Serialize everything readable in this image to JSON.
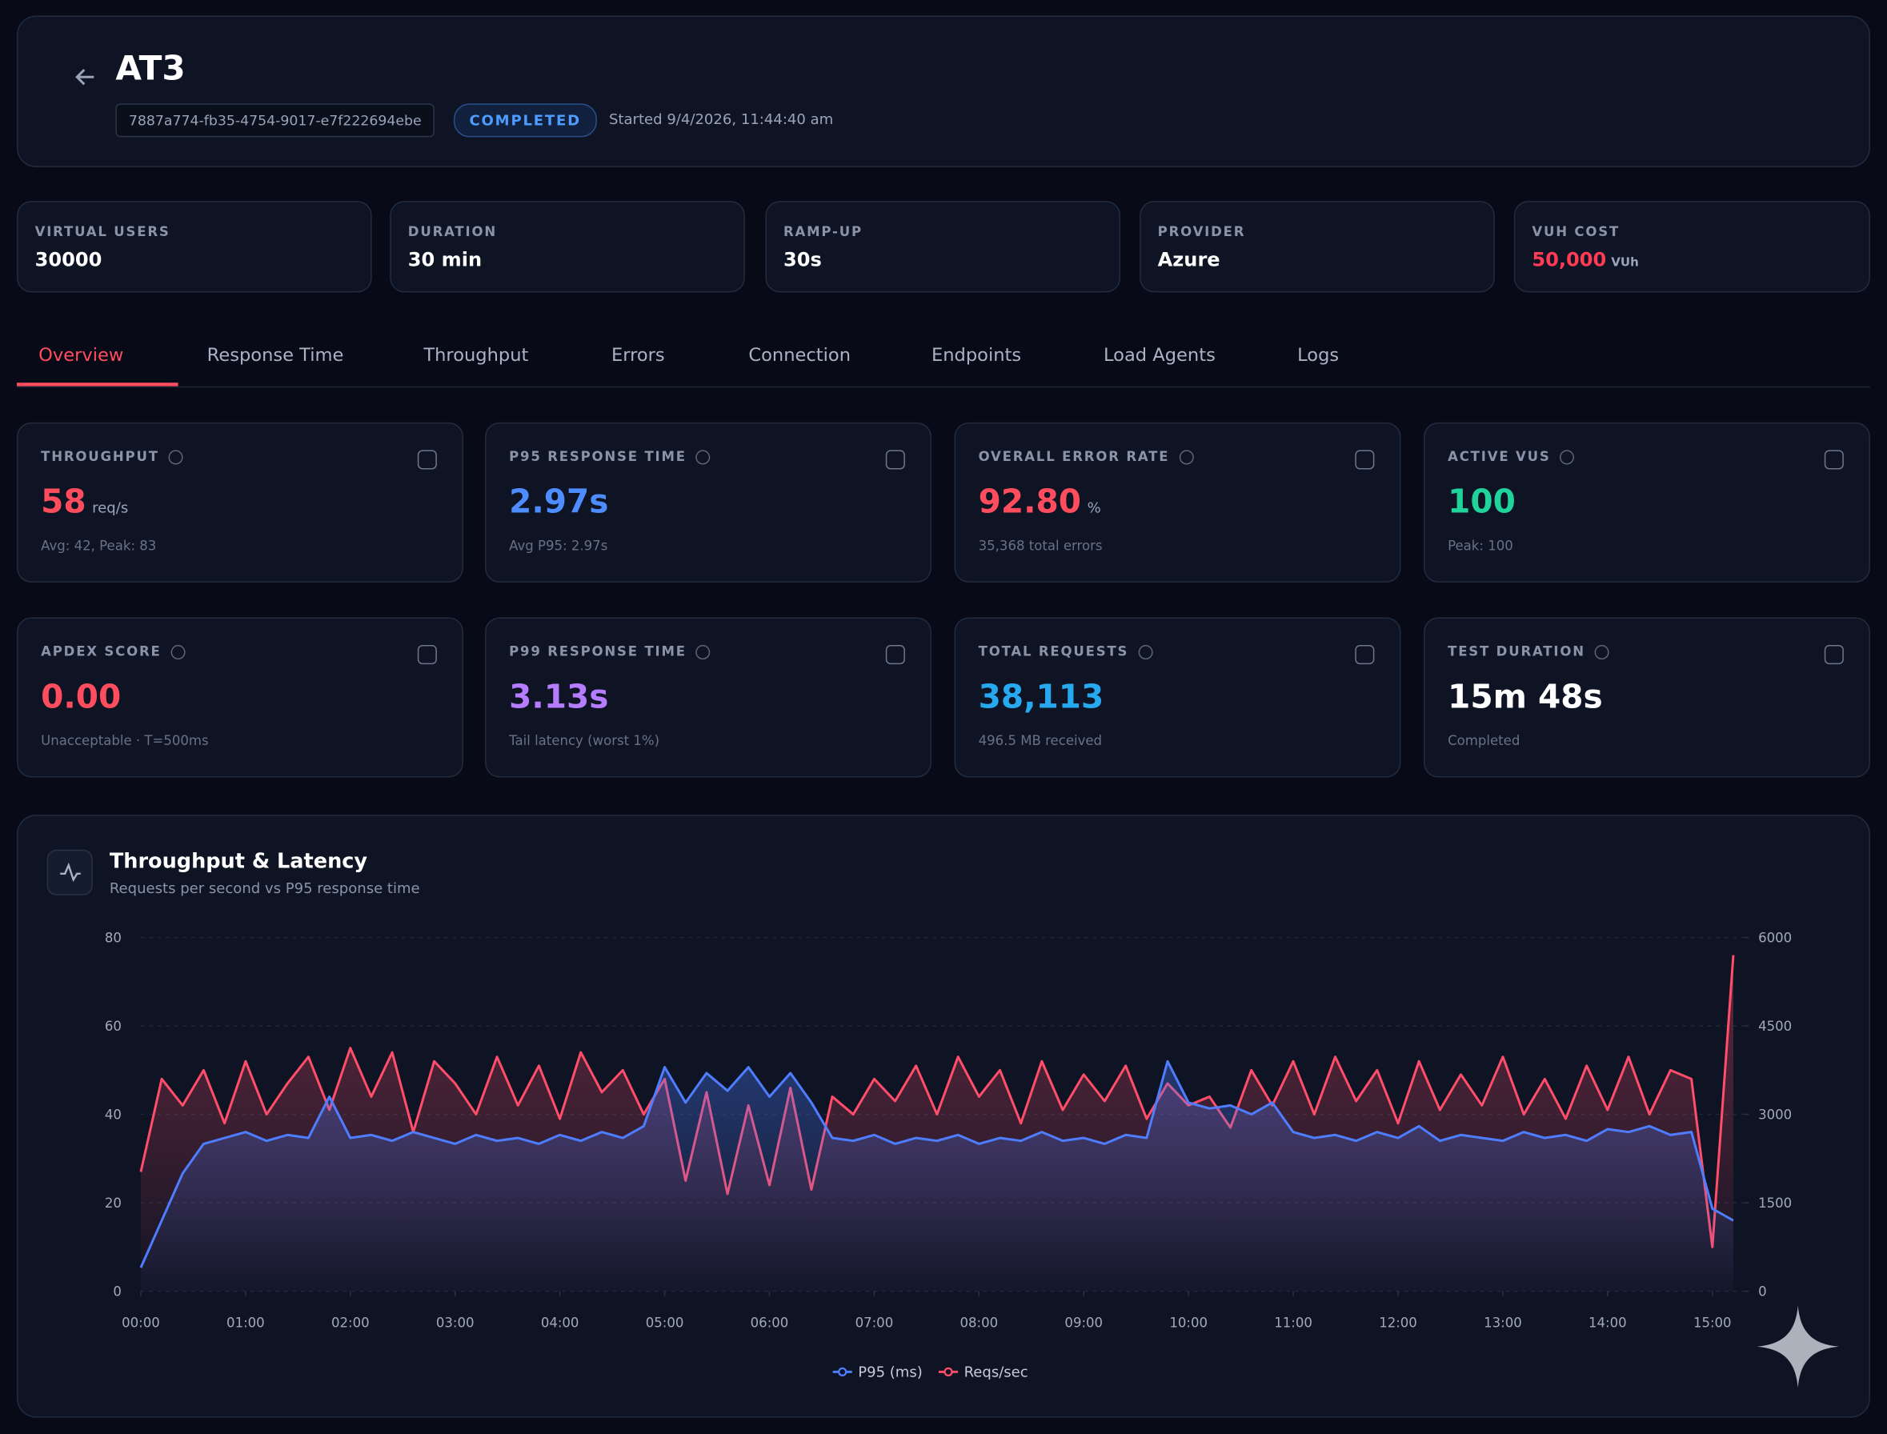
{
  "header": {
    "title": "AT3",
    "run_id": "7887a774-fb35-4754-9017-e7f222694ebe",
    "status": "COMPLETED",
    "started": "Started 9/4/2026, 11:44:40 am"
  },
  "config": [
    {
      "label": "VIRTUAL USERS",
      "value": "30000",
      "color": "#ffffff"
    },
    {
      "label": "DURATION",
      "value": "30 min",
      "color": "#ffffff"
    },
    {
      "label": "RAMP-UP",
      "value": "30s",
      "color": "#ffffff"
    },
    {
      "label": "PROVIDER",
      "value": "Azure",
      "color": "#ffffff"
    },
    {
      "label": "VUH COST",
      "value": "50,000",
      "unit": "VUh",
      "color": "#ff3b55"
    }
  ],
  "tabs": [
    "Overview",
    "Response Time",
    "Throughput",
    "Errors",
    "Connection",
    "Endpoints",
    "Load Agents",
    "Logs"
  ],
  "metrics": [
    {
      "label": "THROUGHPUT",
      "value": "58",
      "unit": "req/s",
      "sub": "Avg: 42, Peak: 83",
      "color": "#ff4d5e"
    },
    {
      "label": "P95 RESPONSE TIME",
      "value": "2.97s",
      "sub": "Avg P95: 2.97s",
      "color": "#4d8dff"
    },
    {
      "label": "OVERALL ERROR RATE",
      "value": "92.80",
      "unit": "%",
      "sub": "35,368 total errors",
      "color": "#ff4d5e"
    },
    {
      "label": "ACTIVE VUS",
      "value": "100",
      "sub": "Peak: 100",
      "color": "#20d39b"
    },
    {
      "label": "APDEX SCORE",
      "value": "0.00",
      "sub": "Unacceptable · T=500ms",
      "color": "#ff4d5e"
    },
    {
      "label": "P99 RESPONSE TIME",
      "value": "3.13s",
      "sub": "Tail latency (worst 1%)",
      "color": "#b57cff"
    },
    {
      "label": "TOTAL REQUESTS",
      "value": "38,113",
      "sub": "496.5 MB received",
      "color": "#27a9ef"
    },
    {
      "label": "TEST DURATION",
      "value": "15m 48s",
      "sub": "Completed",
      "color": "#ffffff"
    }
  ],
  "chart_data": {
    "type": "line",
    "title": "Throughput & Latency",
    "subtitle": "Requests per second vs P95 response time",
    "x": [
      0,
      0.2,
      0.4,
      0.6,
      0.8,
      1,
      1.2,
      1.4,
      1.6,
      1.8,
      2,
      2.2,
      2.4,
      2.6,
      2.8,
      3,
      3.2,
      3.4,
      3.6,
      3.8,
      4,
      4.2,
      4.4,
      4.6,
      4.8,
      5,
      5.2,
      5.4,
      5.6,
      5.8,
      6,
      6.2,
      6.4,
      6.6,
      6.8,
      7,
      7.2,
      7.4,
      7.6,
      7.8,
      8,
      8.2,
      8.4,
      8.6,
      8.8,
      9,
      9.2,
      9.4,
      9.6,
      9.8,
      10,
      10.2,
      10.4,
      10.6,
      10.8,
      11,
      11.2,
      11.4,
      11.6,
      11.8,
      12,
      12.2,
      12.4,
      12.6,
      12.8,
      13,
      13.2,
      13.4,
      13.6,
      13.8,
      14,
      14.2,
      14.4,
      14.6,
      14.8,
      15,
      15.2
    ],
    "series": [
      {
        "name": "P95 (ms)",
        "color": "#4f7dff",
        "axis": "y2",
        "values": [
          400,
          1200,
          2000,
          2500,
          2600,
          2700,
          2550,
          2650,
          2600,
          3300,
          2600,
          2650,
          2550,
          2700,
          2600,
          2500,
          2650,
          2550,
          2600,
          2500,
          2650,
          2550,
          2700,
          2600,
          2800,
          3800,
          3200,
          3700,
          3400,
          3800,
          3300,
          3700,
          3200,
          2600,
          2550,
          2650,
          2500,
          2600,
          2550,
          2650,
          2500,
          2600,
          2550,
          2700,
          2550,
          2600,
          2500,
          2650,
          2600,
          3900,
          3200,
          3100,
          3150,
          3000,
          3200,
          2700,
          2600,
          2650,
          2550,
          2700,
          2600,
          2800,
          2550,
          2650,
          2600,
          2550,
          2700,
          2600,
          2650,
          2550,
          2750,
          2700,
          2800,
          2650,
          2700,
          1400,
          1200
        ]
      },
      {
        "name": "Reqs/sec",
        "color": "#ff4d6a",
        "values": [
          27,
          48,
          42,
          50,
          38,
          52,
          40,
          47,
          53,
          41,
          55,
          44,
          54,
          36,
          52,
          47,
          40,
          53,
          42,
          51,
          39,
          54,
          45,
          50,
          40,
          48,
          25,
          45,
          22,
          42,
          24,
          46,
          23,
          44,
          40,
          48,
          43,
          51,
          40,
          53,
          44,
          50,
          38,
          52,
          41,
          49,
          43,
          51,
          39,
          47,
          42,
          44,
          37,
          50,
          42,
          52,
          40,
          53,
          43,
          50,
          38,
          52,
          41,
          49,
          42,
          53,
          40,
          48,
          39,
          51,
          41,
          53,
          40,
          50,
          48,
          10,
          76
        ]
      }
    ],
    "xlim": [
      0,
      15.3
    ],
    "xticks": [
      {
        "value": 0,
        "label": "00:00"
      },
      {
        "value": 1,
        "label": "01:00"
      },
      {
        "value": 2,
        "label": "02:00"
      },
      {
        "value": 3,
        "label": "03:00"
      },
      {
        "value": 4,
        "label": "04:00"
      },
      {
        "value": 5,
        "label": "05:00"
      },
      {
        "value": 6,
        "label": "06:00"
      },
      {
        "value": 7,
        "label": "07:00"
      },
      {
        "value": 8,
        "label": "08:00"
      },
      {
        "value": 9,
        "label": "09:00"
      },
      {
        "value": 10,
        "label": "10:00"
      },
      {
        "value": 11,
        "label": "11:00"
      },
      {
        "value": 12,
        "label": "12:00"
      },
      {
        "value": 13,
        "label": "13:00"
      },
      {
        "value": 14,
        "label": "14:00"
      },
      {
        "value": 15,
        "label": "15:00"
      }
    ],
    "ylim": [
      0,
      80
    ],
    "yticks": [
      0,
      20,
      40,
      60,
      80
    ],
    "y2lim": [
      0,
      6000
    ],
    "y2ticks": [
      0,
      1500,
      3000,
      4500,
      6000
    ],
    "grid": true,
    "legend": "bottom"
  }
}
